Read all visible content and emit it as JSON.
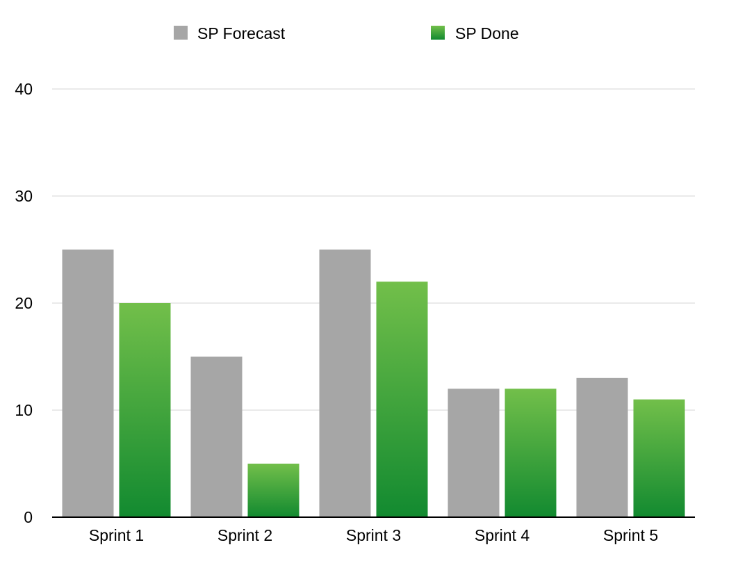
{
  "chart_data": {
    "type": "bar",
    "categories": [
      "Sprint 1",
      "Sprint 2",
      "Sprint 3",
      "Sprint 4",
      "Sprint 5"
    ],
    "series": [
      {
        "name": "SP Forecast",
        "values": [
          25,
          15,
          25,
          12,
          13
        ],
        "color": "#a6a6a6"
      },
      {
        "name": "SP Done",
        "values": [
          20,
          5,
          22,
          12,
          11
        ],
        "color_top": "#72bf4a",
        "color_bottom": "#128a30"
      }
    ],
    "yticks": [
      "0",
      "10",
      "20",
      "30",
      "40"
    ],
    "ylim": [
      0,
      40
    ],
    "grid": true,
    "legend_position": "top-center",
    "xlabel": "",
    "ylabel": "",
    "title": ""
  }
}
